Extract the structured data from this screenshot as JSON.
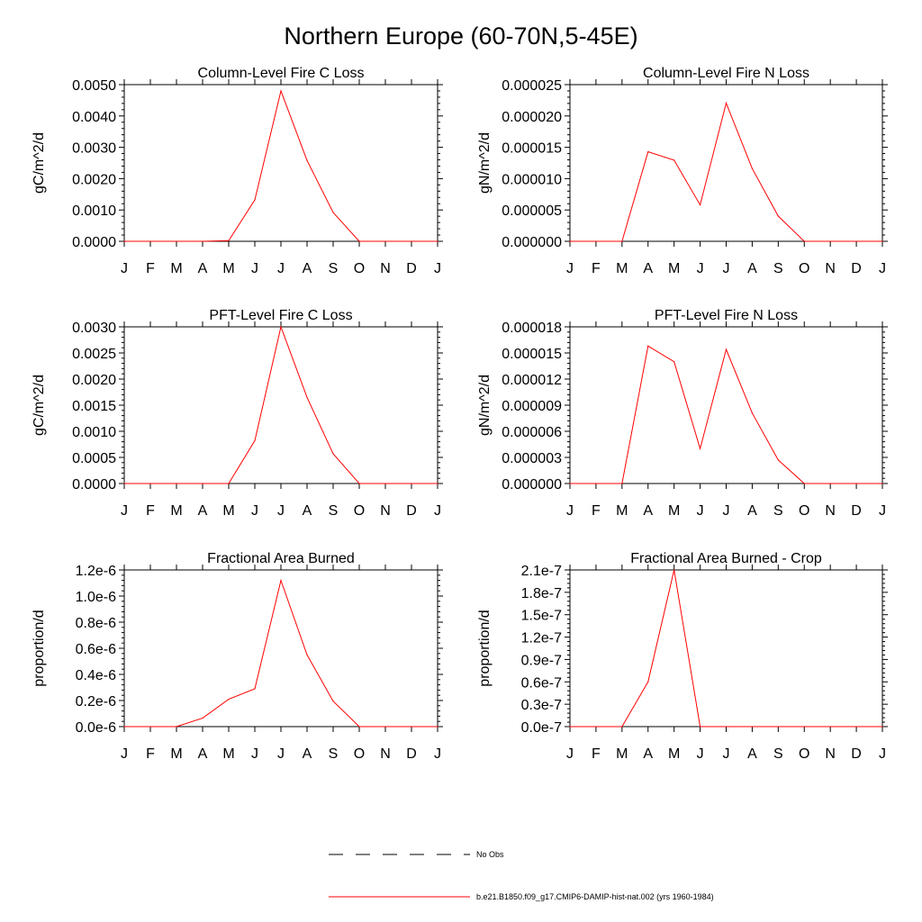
{
  "figure": {
    "title": "Northern Europe (60-70N,5-45E)"
  },
  "colors": {
    "series": "#ff0000",
    "axes": "#000000",
    "background": "#ffffff"
  },
  "legend": {
    "placement": "bottom-center",
    "entries": [
      {
        "label": "No Obs",
        "style": "dashed",
        "color": "#000000"
      },
      {
        "label": "b.e21.B1850.f09_g17.CMIP6-DAMIP-hist-nat.002 (yrs 1960-1984)",
        "style": "solid",
        "color": "#ff0000"
      }
    ]
  },
  "chart_data": [
    {
      "type": "line",
      "title": "Column-Level Fire C Loss",
      "ylabel": "gC/m^2/d",
      "xlabel": "",
      "categories": [
        "J",
        "F",
        "M",
        "A",
        "M",
        "J",
        "J",
        "A",
        "S",
        "O",
        "N",
        "D",
        "J"
      ],
      "ylim": [
        0,
        0.005
      ],
      "yticks": [
        "0.0000",
        "0.0010",
        "0.0020",
        "0.0030",
        "0.0040",
        "0.0050"
      ],
      "grid": false,
      "series": [
        {
          "values": [
            0,
            0,
            0,
            0,
            2e-05,
            0.00132,
            0.0048,
            0.00258,
            0.00092,
            0,
            0,
            0,
            0
          ]
        }
      ]
    },
    {
      "type": "line",
      "title": "Column-Level Fire N Loss",
      "ylabel": "gN/m^2/d",
      "xlabel": "",
      "categories": [
        "J",
        "F",
        "M",
        "A",
        "M",
        "J",
        "J",
        "A",
        "S",
        "O",
        "N",
        "D",
        "J"
      ],
      "ylim": [
        0,
        2.8e-05
      ],
      "yticks": [
        "0.000000",
        "0.000005",
        "0.000010",
        "0.000015",
        "0.000020",
        "0.000025"
      ],
      "grid": false,
      "series": [
        {
          "values": [
            0,
            0,
            0,
            1.6e-05,
            1.45e-05,
            6.5e-06,
            2.47e-05,
            1.3e-05,
            4.5e-06,
            0,
            0,
            0,
            0
          ]
        }
      ]
    },
    {
      "type": "line",
      "title": "PFT-Level Fire C Loss",
      "ylabel": "gC/m^2/d",
      "xlabel": "",
      "categories": [
        "J",
        "F",
        "M",
        "A",
        "M",
        "J",
        "J",
        "A",
        "S",
        "O",
        "N",
        "D",
        "J"
      ],
      "ylim": [
        0,
        0.003
      ],
      "yticks": [
        "0.0000",
        "0.0005",
        "0.0010",
        "0.0015",
        "0.0020",
        "0.0025",
        "0.0030"
      ],
      "grid": false,
      "series": [
        {
          "values": [
            0,
            0,
            0,
            0,
            0,
            0.00082,
            0.003,
            0.00165,
            0.00057,
            0,
            0,
            0,
            0
          ]
        }
      ]
    },
    {
      "type": "line",
      "title": "PFT-Level Fire N Loss",
      "ylabel": "gN/m^2/d",
      "xlabel": "",
      "categories": [
        "J",
        "F",
        "M",
        "A",
        "M",
        "J",
        "J",
        "A",
        "S",
        "O",
        "N",
        "D",
        "J"
      ],
      "ylim": [
        0,
        1.8e-05
      ],
      "yticks": [
        "0.000000",
        "0.000003",
        "0.000006",
        "0.000009",
        "0.000012",
        "0.000015",
        "0.000018"
      ],
      "grid": false,
      "series": [
        {
          "values": [
            0,
            0,
            0,
            1.58e-05,
            1.4e-05,
            4e-06,
            1.54e-05,
            8.1e-06,
            2.7e-06,
            0,
            0,
            0,
            0
          ]
        }
      ]
    },
    {
      "type": "line",
      "title": "Fractional Area Burned",
      "ylabel": "proportion/d",
      "xlabel": "",
      "categories": [
        "J",
        "F",
        "M",
        "A",
        "M",
        "J",
        "J",
        "A",
        "S",
        "O",
        "N",
        "D",
        "J"
      ],
      "ylim": [
        0,
        1.2e-06
      ],
      "yticks": [
        "0.0e-6",
        "0.2e-6",
        "0.4e-6",
        "0.6e-6",
        "0.8e-6",
        "1.0e-6",
        "1.2e-6"
      ],
      "grid": false,
      "series": [
        {
          "values": [
            0,
            0,
            0,
            6.5e-08,
            2.1e-07,
            2.9e-07,
            1.12e-06,
            5.5e-07,
            1.95e-07,
            0,
            0,
            0,
            0
          ]
        }
      ]
    },
    {
      "type": "line",
      "title": "Fractional Area Burned - Crop",
      "ylabel": "proportion/d",
      "xlabel": "",
      "categories": [
        "J",
        "F",
        "M",
        "A",
        "M",
        "J",
        "J",
        "A",
        "S",
        "O",
        "N",
        "D",
        "J"
      ],
      "ylim": [
        0,
        2.1e-07
      ],
      "yticks": [
        "0.0e-7",
        "0.3e-7",
        "0.6e-7",
        "0.9e-7",
        "1.2e-7",
        "1.5e-7",
        "1.8e-7",
        "2.1e-7"
      ],
      "grid": false,
      "series": [
        {
          "values": [
            0,
            0,
            0,
            6e-08,
            2.1e-07,
            0,
            0,
            0,
            0,
            0,
            0,
            0,
            0
          ]
        }
      ]
    }
  ]
}
